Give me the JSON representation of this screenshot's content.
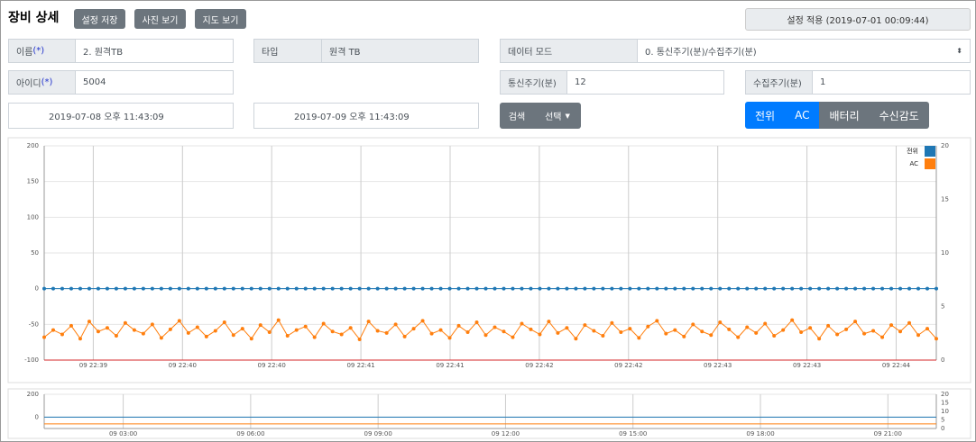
{
  "header": {
    "title": "장비 상세",
    "buttons": [
      "설정 저장",
      "사진 보기",
      "지도 보기"
    ],
    "apply": "설정 적용 (2019-07-01 00:09:44)"
  },
  "fields": {
    "name": {
      "label": "이름",
      "required": "(*)",
      "value": "2. 원격TB"
    },
    "type": {
      "label": "타입",
      "value": "원격 TB"
    },
    "mode": {
      "label": "데이터 모드",
      "value": "0. 통신주기(분)/수집주기(분)"
    },
    "id": {
      "label": "아이디",
      "required": "(*)",
      "value": "5004"
    },
    "comm": {
      "label": "통신주기(분)",
      "value": "12"
    },
    "collect": {
      "label": "수집주기(분)",
      "value": "1"
    },
    "start": "2019-07-08 오후 11:43:09",
    "end": "2019-07-09 오후 11:43:09"
  },
  "actions": {
    "search": "검색",
    "select": "선택"
  },
  "toggles": [
    {
      "label": "전위",
      "active": true
    },
    {
      "label": "AC",
      "active": true
    },
    {
      "label": "배터리",
      "active": false
    },
    {
      "label": "수신감도",
      "active": false
    }
  ],
  "chart_data": [
    {
      "type": "line",
      "markers": true,
      "xtick_labels": [
        "09 22:39",
        "09 22:40",
        "09 22:40",
        "09 22:41",
        "09 22:41",
        "09 22:42",
        "09 22:42",
        "09 22:43",
        "09 22:43",
        "09 22:44"
      ],
      "ylim": [
        -100,
        200
      ],
      "yticks": [
        -100,
        -50,
        0,
        50,
        100,
        150,
        200
      ],
      "y2lim": [
        0,
        20
      ],
      "y2ticks": [
        0,
        5,
        10,
        15,
        20
      ],
      "grid": true,
      "legend": "top-right",
      "series": [
        {
          "name": "전위",
          "color": "#1f77b4",
          "values": [
            0,
            0,
            0,
            0,
            0,
            0,
            0,
            0,
            0,
            0,
            0,
            0,
            0,
            0,
            0,
            0,
            0,
            0,
            0,
            0,
            0,
            0,
            0,
            0,
            0,
            0,
            0,
            0,
            0,
            0,
            0,
            0,
            0,
            0,
            0,
            0,
            0,
            0,
            0,
            0,
            0,
            0,
            0,
            0,
            0,
            0,
            0,
            0,
            0,
            0,
            0,
            0,
            0,
            0,
            0,
            0,
            0,
            0,
            0,
            0,
            0,
            0,
            0,
            0,
            0,
            0,
            0,
            0,
            0,
            0,
            0,
            0,
            0,
            0,
            0,
            0,
            0,
            0,
            0,
            0,
            0,
            0,
            0,
            0,
            0,
            0,
            0,
            0,
            0,
            0,
            0,
            0,
            0,
            0,
            0,
            0,
            0,
            0,
            0,
            0
          ]
        },
        {
          "name": "AC",
          "color": "#ff7f0e",
          "values": [
            -68,
            -58,
            -64,
            -52,
            -70,
            -46,
            -60,
            -55,
            -66,
            -48,
            -58,
            -63,
            -50,
            -69,
            -57,
            -45,
            -62,
            -54,
            -67,
            -59,
            -47,
            -65,
            -56,
            -70,
            -51,
            -61,
            -44,
            -66,
            -58,
            -53,
            -68,
            -49,
            -60,
            -64,
            -55,
            -71,
            -46,
            -59,
            -62,
            -50,
            -67,
            -56,
            -45,
            -63,
            -58,
            -69,
            -52,
            -61,
            -47,
            -65,
            -54,
            -60,
            -68,
            -49,
            -57,
            -64,
            -46,
            -62,
            -55,
            -70,
            -51,
            -59,
            -66,
            -48,
            -61,
            -56,
            -69,
            -53,
            -45,
            -63,
            -58,
            -67,
            -50,
            -60,
            -65,
            -47,
            -57,
            -68,
            -54,
            -62,
            -49,
            -66,
            -58,
            -44,
            -61,
            -55,
            -70,
            -52,
            -64,
            -57,
            -46,
            -63,
            -59,
            -68,
            -51,
            -60,
            -48,
            -65,
            -56,
            -70
          ]
        }
      ]
    },
    {
      "type": "line",
      "markers": false,
      "xtick_labels": [
        "09 03:00",
        "09 06:00",
        "09 09:00",
        "09 12:00",
        "09 15:00",
        "09 18:00",
        "09 21:00"
      ],
      "ylim": [
        -100,
        200
      ],
      "yticks": [
        0,
        200
      ],
      "y2lim": [
        0,
        20
      ],
      "y2ticks": [
        0,
        5,
        10,
        15,
        20
      ],
      "grid": true,
      "series": [
        {
          "name": "전위",
          "color": "#1f77b4",
          "values": [
            0,
            0
          ]
        },
        {
          "name": "AC",
          "color": "#ff7f0e",
          "values": [
            -60,
            -60
          ]
        }
      ]
    }
  ]
}
